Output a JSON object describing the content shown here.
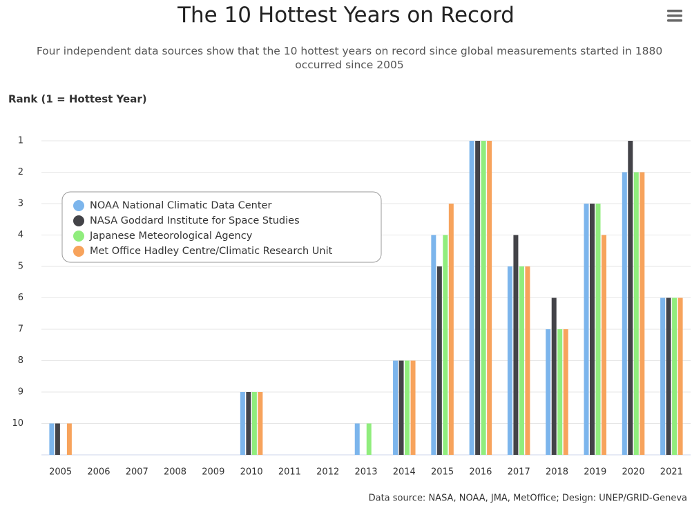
{
  "chart_data": {
    "type": "bar",
    "title": "The 10 Hottest Years on Record",
    "subtitle": "Four independent data sources show that the 10 hottest years on record since global measurements started in 1880 occurred since 2005",
    "y_axis_label": "Rank (1 = Hottest Year)",
    "credits": "Data source: NASA, NOAA, JMA, MetOffice; Design: UNEP/GRID-Geneva",
    "categories": [
      "2005",
      "2006",
      "2007",
      "2008",
      "2009",
      "2010",
      "2011",
      "2012",
      "2013",
      "2014",
      "2015",
      "2016",
      "2017",
      "2018",
      "2019",
      "2020",
      "2021"
    ],
    "series": [
      {
        "name": "NOAA National Climatic Data Center",
        "color": "#7cb5ec",
        "values": [
          10,
          null,
          null,
          null,
          null,
          9,
          null,
          null,
          10,
          8,
          4,
          1,
          5,
          7,
          3,
          2,
          6
        ]
      },
      {
        "name": "NASA Goddard Institute for Space Studies",
        "color": "#434348",
        "values": [
          10,
          null,
          null,
          null,
          null,
          9,
          null,
          null,
          null,
          8,
          5,
          1,
          4,
          6,
          3,
          1,
          6
        ]
      },
      {
        "name": "Japanese Meteorological Agency",
        "color": "#90ed7d",
        "values": [
          null,
          null,
          null,
          null,
          null,
          9,
          null,
          null,
          10,
          8,
          4,
          1,
          5,
          7,
          3,
          2,
          6
        ]
      },
      {
        "name": "Met Office Hadley Centre/Climatic Research Unit",
        "color": "#f7a35c",
        "values": [
          10,
          null,
          null,
          null,
          null,
          9,
          null,
          null,
          null,
          8,
          3,
          1,
          5,
          7,
          4,
          2,
          6
        ]
      }
    ],
    "ylim": [
      11,
      1
    ],
    "yticks": [
      1,
      2,
      3,
      4,
      5,
      6,
      7,
      8,
      9,
      10
    ],
    "grid": true,
    "legend_position": "left"
  }
}
